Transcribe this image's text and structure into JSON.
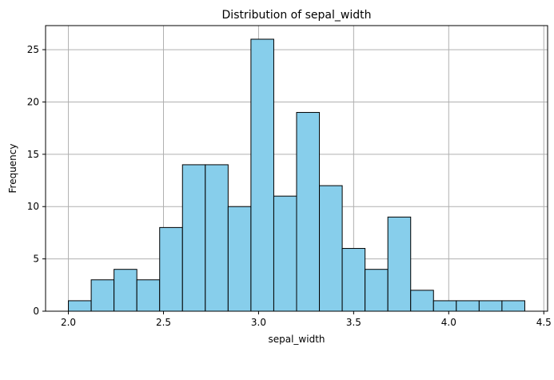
{
  "chart_data": {
    "type": "bar",
    "title": "Distribution of sepal_width",
    "xlabel": "sepal_width",
    "ylabel": "Frequency",
    "bin_edges": [
      2.0,
      2.12,
      2.24,
      2.36,
      2.48,
      2.6,
      2.72,
      2.84,
      2.96,
      3.08,
      3.2,
      3.32,
      3.44,
      3.56,
      3.68,
      3.8,
      3.92,
      4.04,
      4.16,
      4.28,
      4.4
    ],
    "values": [
      1,
      3,
      4,
      3,
      8,
      14,
      14,
      10,
      26,
      11,
      19,
      12,
      6,
      4,
      9,
      2,
      1,
      1,
      1,
      1
    ],
    "xlim": [
      1.88,
      4.52
    ],
    "ylim": [
      0,
      27.3
    ],
    "xticks": [
      2.0,
      2.5,
      3.0,
      3.5,
      4.0,
      4.5
    ],
    "xtick_labels": [
      "2.0",
      "2.5",
      "3.0",
      "3.5",
      "4.0",
      "4.5"
    ],
    "yticks": [
      0,
      5,
      10,
      15,
      20,
      25
    ],
    "ytick_labels": [
      "0",
      "5",
      "10",
      "15",
      "20",
      "25"
    ],
    "grid": true,
    "colors": {
      "bar_fill": "#87ceeb",
      "bar_edge": "#000000",
      "grid": "#b0b0b0"
    }
  }
}
